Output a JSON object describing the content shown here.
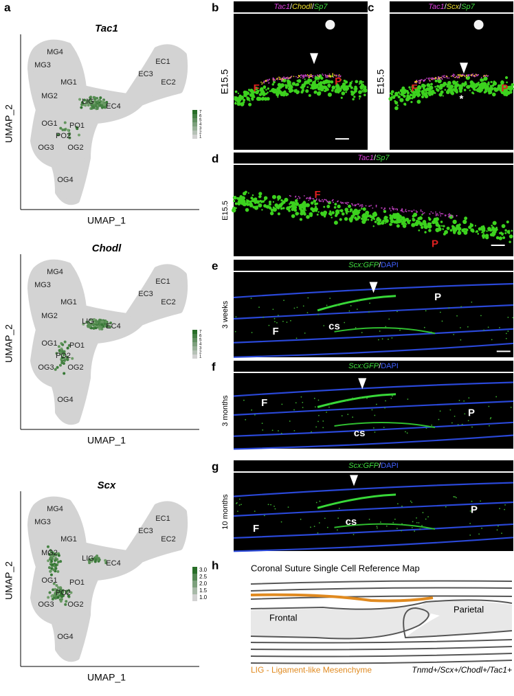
{
  "umaps": [
    {
      "label": "a",
      "title": "Tac1",
      "x_axis": "UMAP_1",
      "y_axis": "UMAP_2",
      "clusters": [
        "MG4",
        "MG3",
        "MG1",
        "MG2",
        "LIG",
        "EC4",
        "EC1",
        "EC3",
        "EC2",
        "OG1",
        "PO1",
        "PO2",
        "OG3",
        "OG2",
        "OG4"
      ],
      "legend": [
        "7",
        "6",
        "5",
        "4",
        "3",
        "2",
        "1"
      ]
    },
    {
      "title": "Chodl",
      "x_axis": "UMAP_1",
      "y_axis": "UMAP_2",
      "clusters": [
        "MG4",
        "MG3",
        "MG1",
        "MG2",
        "LIG",
        "EC4",
        "EC1",
        "EC3",
        "EC2",
        "OG1",
        "PO1",
        "PO2",
        "OG3",
        "OG2",
        "OG4"
      ],
      "legend": [
        "7",
        "6",
        "5",
        "4",
        "3",
        "2",
        "1"
      ]
    },
    {
      "title": "Scx",
      "x_axis": "UMAP_1",
      "y_axis": "UMAP_2",
      "clusters": [
        "MG4",
        "MG3",
        "MG1",
        "MG2",
        "LIG",
        "EC4",
        "EC1",
        "EC3",
        "EC2",
        "OG1",
        "PO1",
        "PO2",
        "OG3",
        "OG2",
        "OG4"
      ],
      "legend": [
        "3.0",
        "2.5",
        "2.0",
        "1.5",
        "1.0"
      ]
    }
  ],
  "images": [
    {
      "label": "b",
      "side": "E15.5",
      "header": [
        {
          "text": "Tac1",
          "color": "#e040e0",
          "italic": true
        },
        {
          "text": "/",
          "color": "#ffffff"
        },
        {
          "text": "Chodl",
          "color": "#f0e030",
          "italic": true
        },
        {
          "text": "/",
          "color": "#ffffff"
        },
        {
          "text": "Sp7",
          "color": "#40e040",
          "italic": true
        }
      ],
      "overlays": [
        "F",
        "P"
      ]
    },
    {
      "label": "c",
      "side": "E15.5",
      "header": [
        {
          "text": "Tac1",
          "color": "#e040e0",
          "italic": true
        },
        {
          "text": "/",
          "color": "#ffffff"
        },
        {
          "text": "Scx",
          "color": "#f0e030",
          "italic": true
        },
        {
          "text": "/",
          "color": "#ffffff"
        },
        {
          "text": "Sp7",
          "color": "#40e040",
          "italic": true
        }
      ],
      "overlays": [
        "F",
        "*",
        "P"
      ]
    },
    {
      "label": "d",
      "side": "E15.5",
      "header": [
        {
          "text": "Tac1",
          "color": "#e040e0",
          "italic": true
        },
        {
          "text": "/",
          "color": "#ffffff"
        },
        {
          "text": "Sp7",
          "color": "#40e040",
          "italic": true
        }
      ],
      "overlays": [
        "F",
        "P"
      ]
    },
    {
      "label": "e",
      "side": "3 weeks",
      "header": [
        {
          "text": "Scx:GFP",
          "color": "#40e040",
          "italic": true
        },
        {
          "text": "/",
          "color": "#ffffff"
        },
        {
          "text": "DAPI",
          "color": "#4060ff",
          "italic": false
        }
      ],
      "overlays": [
        "F",
        "cs",
        "P"
      ]
    },
    {
      "label": "f",
      "side": "3 months",
      "header": [
        {
          "text": "Scx:GFP",
          "color": "#40e040",
          "italic": true
        },
        {
          "text": "/",
          "color": "#ffffff"
        },
        {
          "text": "DAPI",
          "color": "#4060ff",
          "italic": false
        }
      ],
      "overlays": [
        "F",
        "cs",
        "P"
      ]
    },
    {
      "label": "g",
      "side": "10 months",
      "header": [
        {
          "text": "Scx:GFP",
          "color": "#40e040",
          "italic": true
        },
        {
          "text": "/",
          "color": "#ffffff"
        },
        {
          "text": "DAPI",
          "color": "#4060ff",
          "italic": false
        }
      ],
      "overlays": [
        "F",
        "cs",
        "P"
      ]
    }
  ],
  "diagram": {
    "label": "h",
    "title": "Coronal Suture Single Cell Reference Map",
    "frontal": "Frontal",
    "parietal": "Parietal",
    "legend": "LIG - Ligament-like Mesenchyme",
    "markers": "Tnmd+/Scx+/Chodl+/Tac1+"
  }
}
